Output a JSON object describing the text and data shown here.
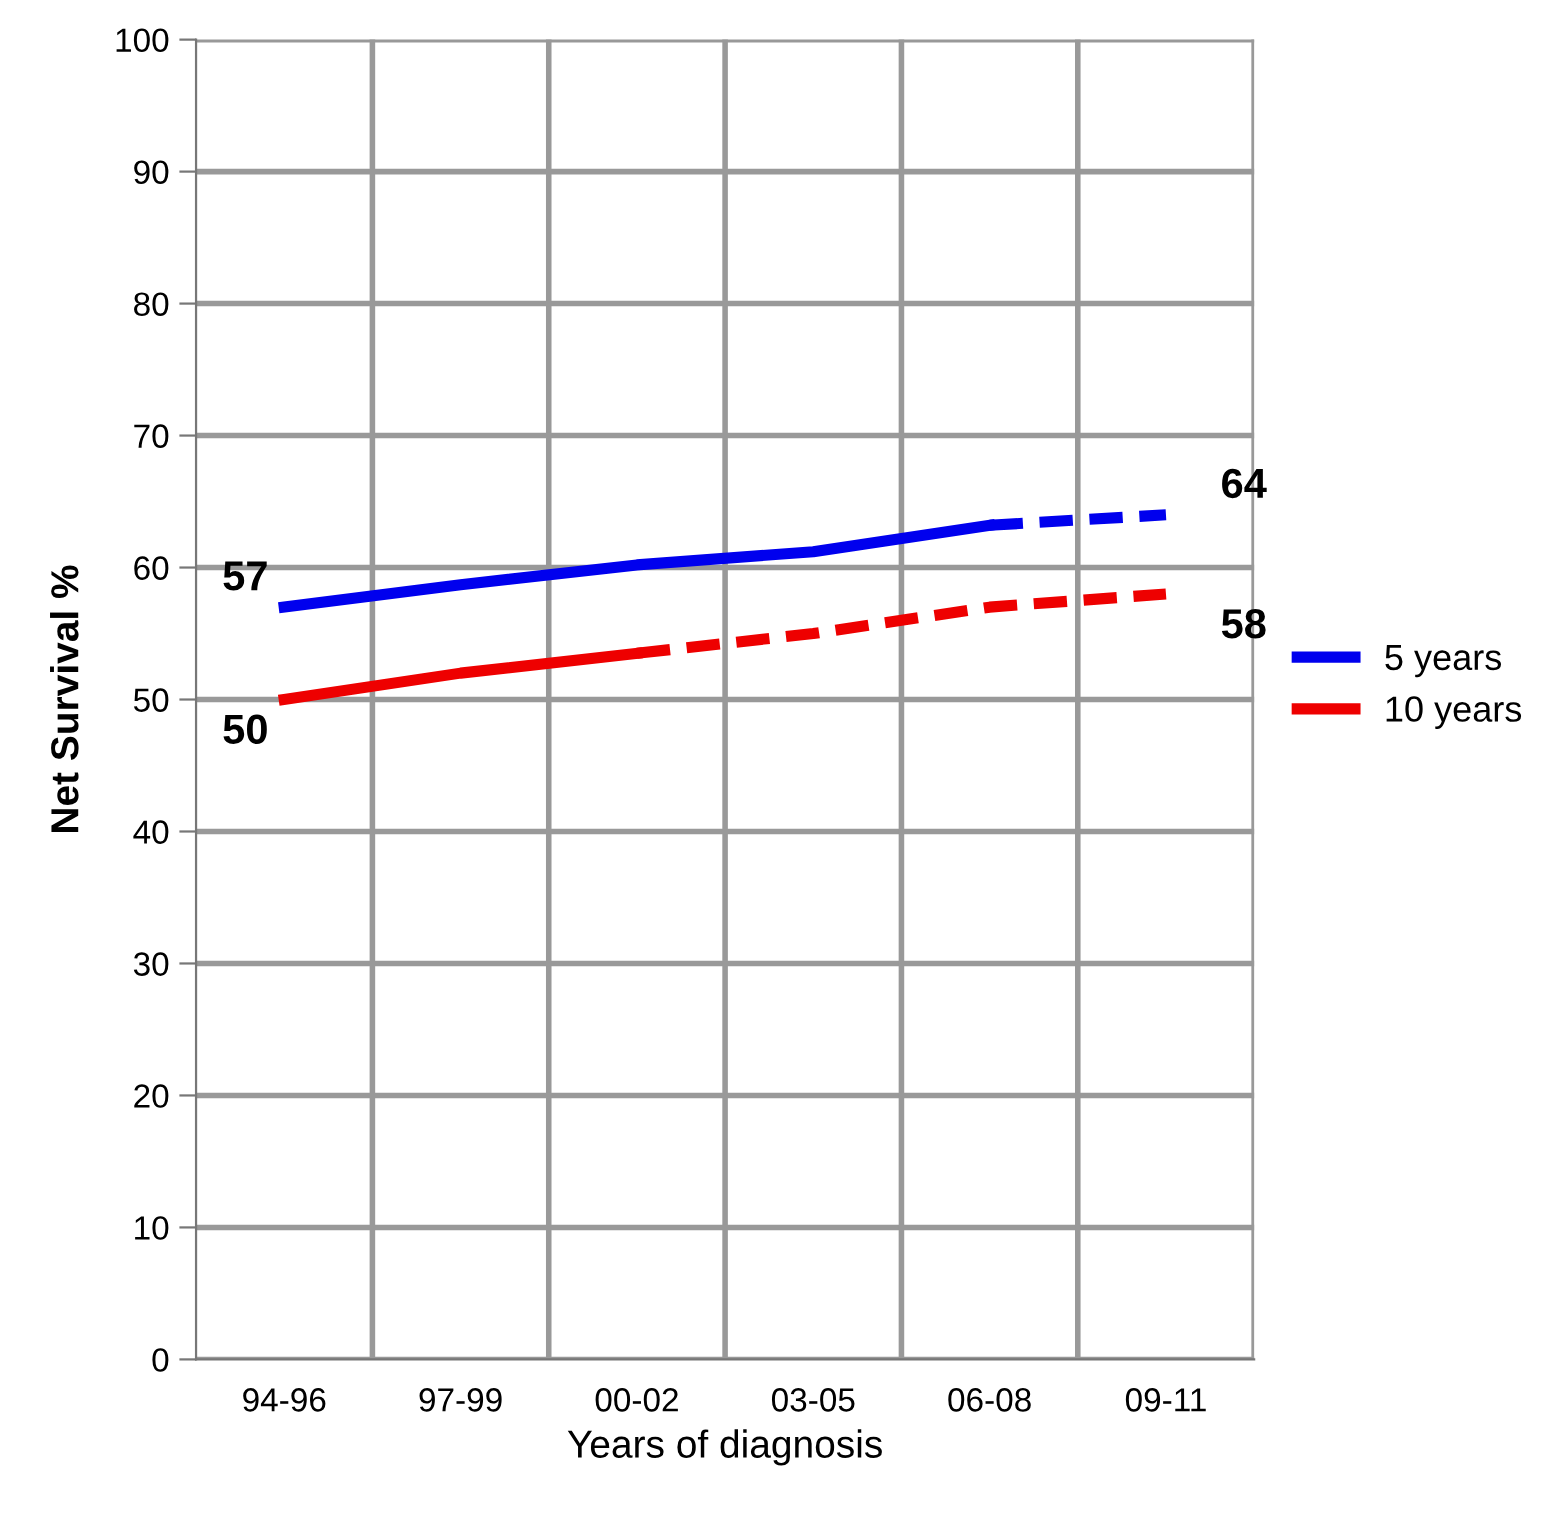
{
  "chart_data": {
    "type": "line",
    "xlabel": "Years of diagnosis",
    "ylabel": "Net Survival %",
    "categories": [
      "94-96",
      "97-99",
      "00-02",
      "03-05",
      "06-08",
      "09-11"
    ],
    "series": [
      {
        "name": "5 years",
        "color": "#0000ee",
        "line_style": "solid",
        "values": [
          57,
          58.7,
          60.2,
          61.2,
          63.2,
          null
        ],
        "value_labels": [
          "57",
          null,
          null,
          null,
          null,
          null
        ]
      },
      {
        "color": "#0000ee",
        "line_style": "dashed",
        "values": [
          null,
          null,
          null,
          null,
          63.2,
          64
        ],
        "value_labels": [
          null,
          null,
          null,
          null,
          null,
          "64"
        ]
      },
      {
        "name": "10 years",
        "color": "#ee0000",
        "line_style": "solid",
        "values": [
          50,
          52,
          53.5,
          null,
          null,
          null
        ],
        "value_labels": [
          "50",
          null,
          null,
          null,
          null,
          null
        ]
      },
      {
        "color": "#ee0000",
        "line_style": "dashed",
        "values": [
          null,
          null,
          53.5,
          55,
          57,
          58
        ],
        "value_labels": [
          null,
          null,
          null,
          null,
          null,
          "58"
        ]
      }
    ],
    "ylim": [
      0,
      100
    ],
    "yticks": [
      0,
      10,
      20,
      30,
      40,
      50,
      60,
      70,
      80,
      90,
      100
    ],
    "grid": true,
    "legend": "right",
    "marker": "none"
  }
}
